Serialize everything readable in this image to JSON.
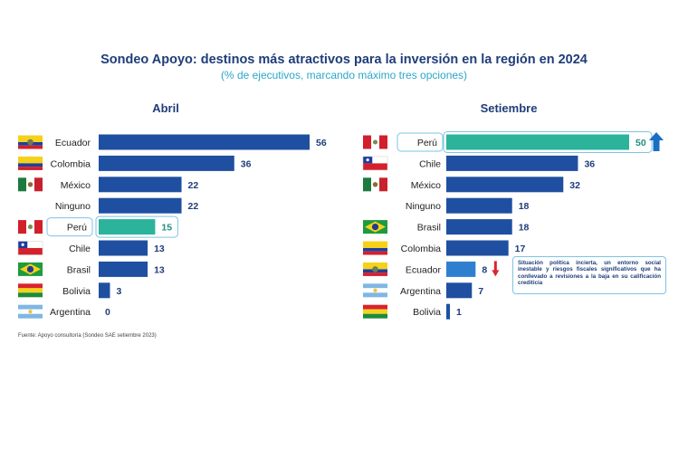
{
  "title": "Sondeo Apoyo: destinos más atractivos para la inversión en la región en 2024",
  "subtitle": "(% de ejecutivos, marcando máximo tres opciones)",
  "source": "Fuente: Apoyo consultoría (Sondeo SAE setiembre 2023)",
  "note": "Situación política incierta, un entorno social inestable y riesgos fiscales significativos que ha conllevado a revisiones a la baja en su calificación crediticia",
  "colors": {
    "bar": "#1f4fa0",
    "highlight": "#2bb39b",
    "ecuador_sep": "#2f7fd0",
    "title": "#1f3d7a",
    "subtitle": "#2aa7c9",
    "up_arrow": "#1a6fc4",
    "down_arrow": "#d9262c"
  },
  "chart_data": [
    {
      "type": "bar",
      "title": "Abril",
      "categories": [
        "Ecuador",
        "Colombia",
        "México",
        "Ninguno",
        "Perú",
        "Chile",
        "Brasil",
        "Bolivia",
        "Argentina"
      ],
      "values": [
        56,
        36,
        22,
        22,
        15,
        13,
        13,
        3,
        0
      ],
      "flags": [
        "ecuador",
        "colombia",
        "mexico",
        "none",
        "peru",
        "chile",
        "brasil",
        "bolivia",
        "argentina"
      ],
      "highlight": "Perú",
      "xlabel": "",
      "ylabel": ""
    },
    {
      "type": "bar",
      "title": "Setiembre",
      "categories": [
        "Perú",
        "Chile",
        "México",
        "Ninguno",
        "Brasil",
        "Colombia",
        "Ecuador",
        "Argentina",
        "Bolivia"
      ],
      "values": [
        50,
        36,
        32,
        18,
        18,
        17,
        8,
        7,
        1
      ],
      "flags": [
        "peru",
        "chile",
        "mexico",
        "none",
        "brasil",
        "colombia",
        "ecuador",
        "argentina",
        "bolivia"
      ],
      "highlight": "Perú",
      "arrows": {
        "Perú": "up",
        "Ecuador": "down"
      },
      "xlabel": "",
      "ylabel": ""
    }
  ]
}
